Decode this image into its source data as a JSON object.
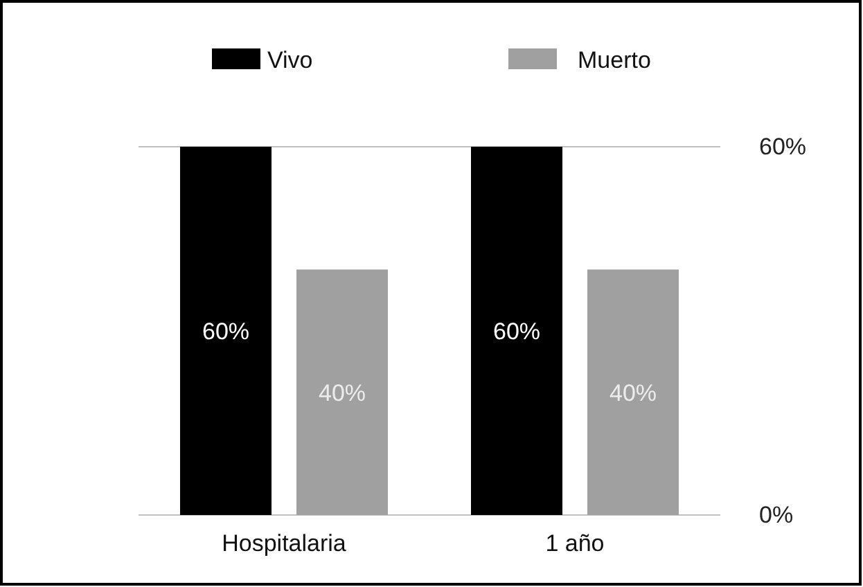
{
  "chart_data": {
    "type": "bar",
    "categories": [
      "Hospitalaria",
      "1 año"
    ],
    "series": [
      {
        "name": "Vivo",
        "color": "#000000",
        "values": [
          60,
          60
        ],
        "value_labels": [
          "60%",
          "60%"
        ]
      },
      {
        "name": "Muerto",
        "color": "#a0a0a0",
        "values": [
          40,
          40
        ],
        "value_labels": [
          "40%",
          "40%"
        ]
      }
    ],
    "ylim": [
      0,
      60
    ],
    "yticks": [
      {
        "value": 0,
        "label": "0%"
      },
      {
        "value": 60,
        "label": "60%"
      }
    ],
    "legend": "top"
  }
}
